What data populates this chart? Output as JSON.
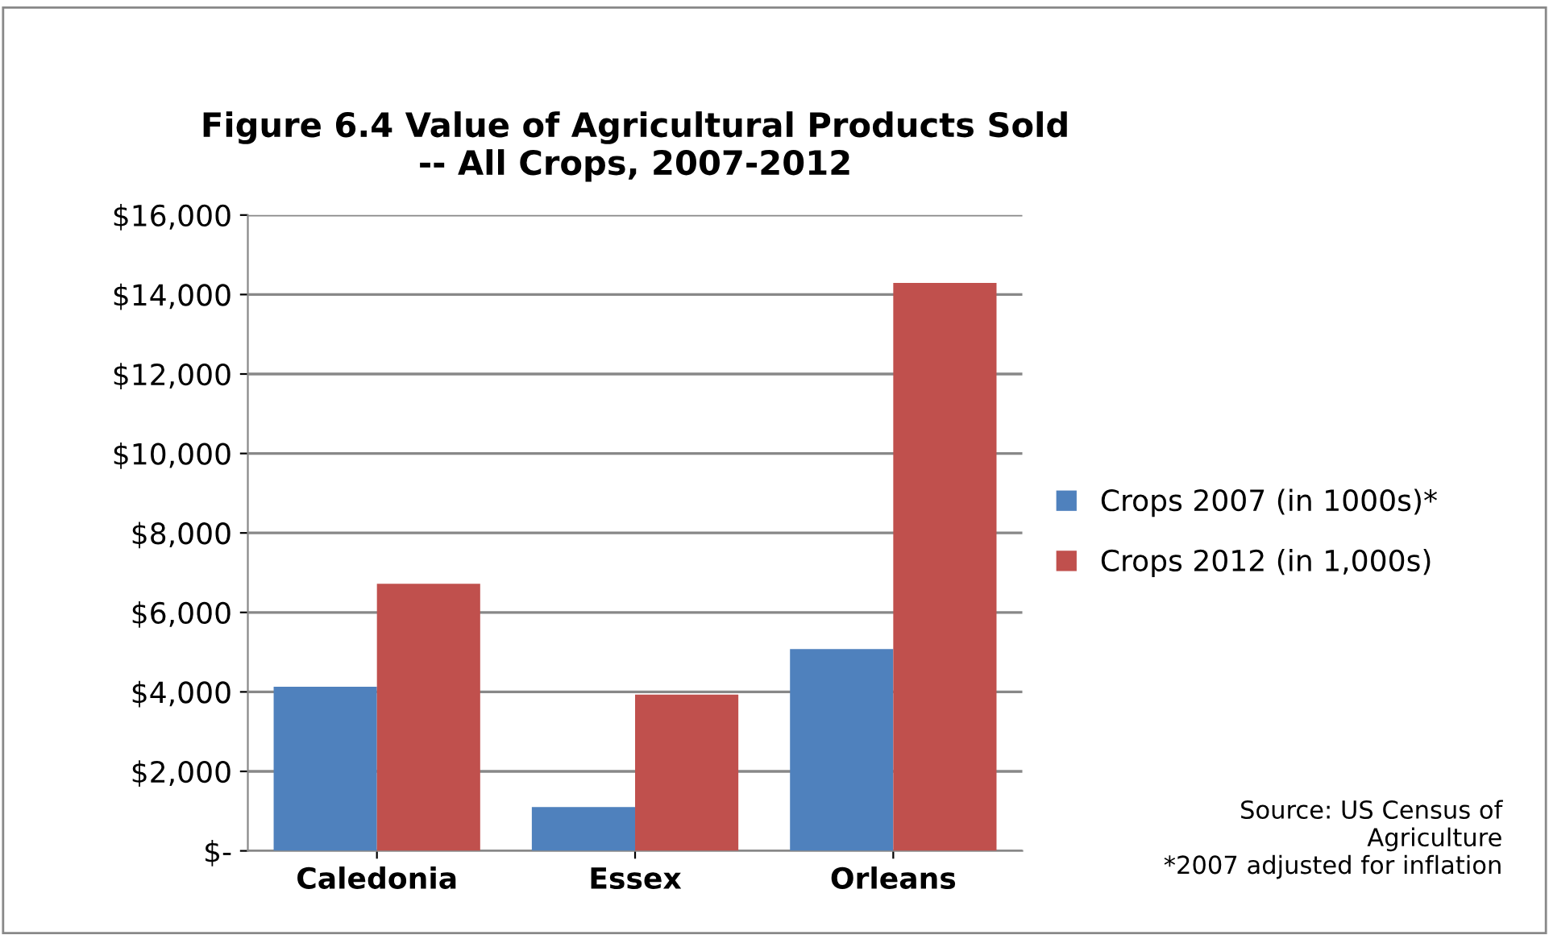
{
  "chart_data": {
    "type": "bar",
    "title": "Figure 6.4 Value of Agricultural Products Sold\n-- All Crops, 2007-2012",
    "categories": [
      "Caledonia",
      "Essex",
      "Orleans"
    ],
    "series": [
      {
        "name": "Crops 2007 (in 1000s)*",
        "color": "#4f81bd",
        "values": [
          4130,
          1100,
          5080
        ]
      },
      {
        "name": "Crops 2012 (in 1,000s)",
        "color": "#c0504d",
        "values": [
          6720,
          3930,
          14290
        ]
      }
    ],
    "ylim": [
      0,
      16000
    ],
    "yticks": [
      {
        "value": 0,
        "label": "$-"
      },
      {
        "value": 2000,
        "label": "$2,000"
      },
      {
        "value": 4000,
        "label": "$4,000"
      },
      {
        "value": 6000,
        "label": "$6,000"
      },
      {
        "value": 8000,
        "label": "$8,000"
      },
      {
        "value": 10000,
        "label": "$10,000"
      },
      {
        "value": 12000,
        "label": "$12,000"
      },
      {
        "value": 14000,
        "label": "$14,000"
      },
      {
        "value": 16000,
        "label": "$16,000"
      }
    ],
    "grid": "y",
    "legend": "right",
    "annotations": [
      "Source: US Census of\nAgriculture\n*2007 adjusted for inflation"
    ]
  }
}
